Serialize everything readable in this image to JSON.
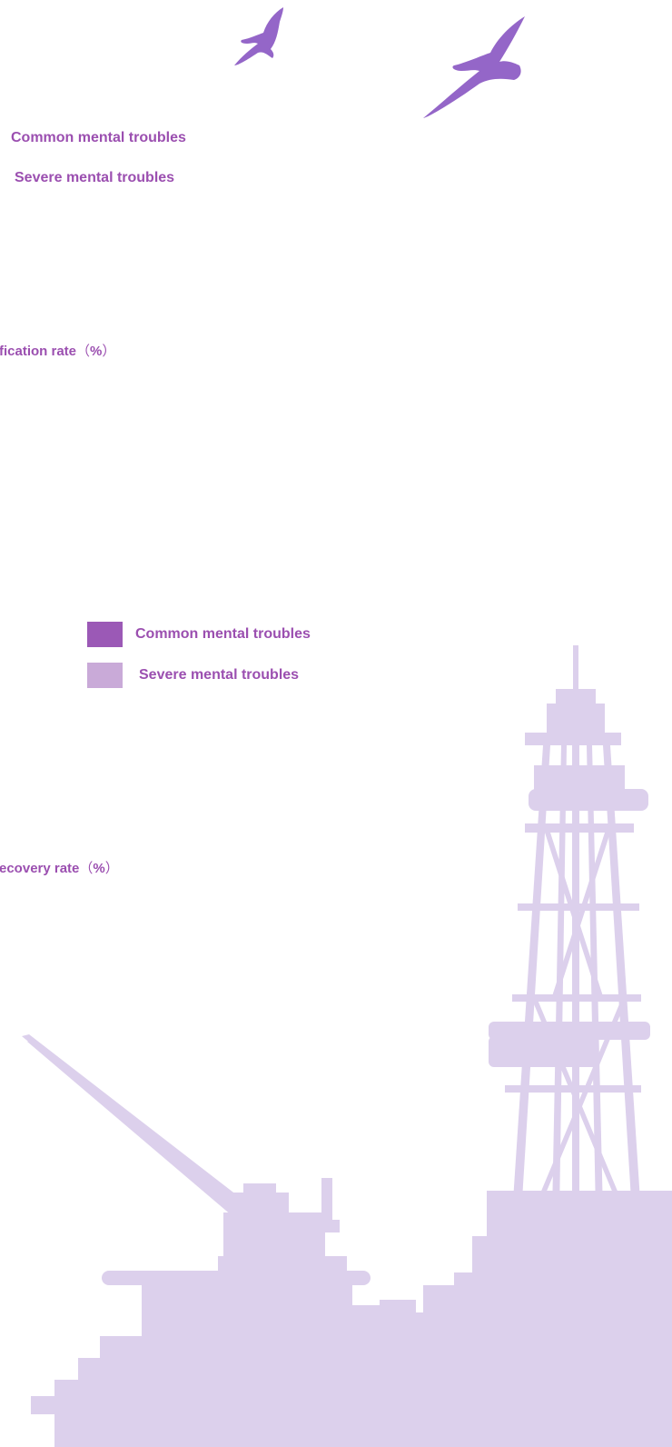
{
  "colors": {
    "common": "#9b59b6",
    "severe": "#c9aad8",
    "bird": "#9466c8",
    "rig": "#dcd0ec",
    "text": "#9b4fb0"
  },
  "chart_data": [
    {
      "type": "bar",
      "legend": {
        "placement": "top-left",
        "entries": [
          "Common mental troubles",
          "Severe mental troubles"
        ]
      },
      "ylabel": "fication rate",
      "ylabel_unit": "%"
    },
    {
      "type": "bar",
      "legend": {
        "placement": "top-left",
        "entries": [
          "Common mental troubles",
          "Severe mental troubles"
        ]
      },
      "ylabel": "ecovery rate",
      "ylabel_unit": "%"
    }
  ],
  "decor": {
    "birds_icon": "seagull-icon",
    "rig_icon": "oil-rig-icon"
  }
}
